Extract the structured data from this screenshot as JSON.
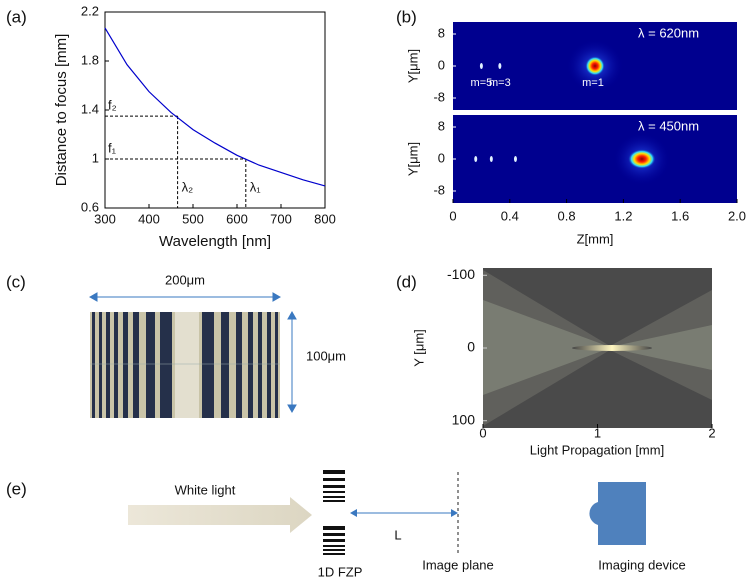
{
  "panel_labels": [
    "(a)",
    "(b)",
    "(c)",
    "(d)",
    "(e)"
  ],
  "chart_data": [
    {
      "type": "line",
      "xlabel": "Wavelength [nm]",
      "ylabel": "Distance to focus [mm]",
      "x": [
        300,
        350,
        400,
        450,
        500,
        550,
        600,
        650,
        700,
        750,
        800
      ],
      "series": [
        {
          "color": "#0000cc",
          "values": [
            2.07,
            1.77,
            1.55,
            1.38,
            1.24,
            1.13,
            1.03,
            0.95,
            0.89,
            0.83,
            0.78
          ]
        }
      ],
      "xlim": [
        300,
        800
      ],
      "ylim": [
        0.6,
        2.2
      ],
      "xticks": [
        300,
        400,
        500,
        600,
        700,
        800
      ],
      "yticks": [
        0.6,
        1,
        1.4,
        1.8,
        2.2
      ],
      "guides": [
        {
          "x": 465,
          "y": 1.35,
          "xlabel": "λ₂",
          "ylabel": "f₂"
        },
        {
          "x": 620,
          "y": 1,
          "xlabel": "λ₁",
          "ylabel": "f₁"
        }
      ]
    },
    {
      "type": "heatmap",
      "xlabel": "Z[mm]",
      "xlim": [
        0,
        2
      ],
      "ylim": [
        -11,
        11
      ],
      "xticks": [
        0,
        0.4,
        0.8,
        1.2,
        1.6,
        {
          "value": 2,
          "label": "2.0"
        }
      ],
      "yticks": [
        8,
        0,
        -8
      ],
      "subplots": [
        {
          "ylabel": "Y[μm]",
          "label": "λ = 620nm",
          "spots": [
            1,
            0.33,
            0.2
          ],
          "spot_labels": [
            "m=1",
            "m=3",
            "m=5"
          ]
        },
        {
          "ylabel": "Y[μm]",
          "label": "λ = 450nm",
          "spots": [
            1.33,
            0.44,
            0.27,
            0.16
          ]
        }
      ]
    },
    {
      "type": "image",
      "xlabel": "Light Propagation [mm]",
      "ylabel": "Y [μm]",
      "xlim": [
        0,
        2
      ],
      "ylim": [
        -110,
        110
      ],
      "xticks": [
        0,
        1,
        2
      ],
      "yticks": [
        -100,
        0,
        100
      ],
      "y_inverted": true
    }
  ],
  "scale_bars": {
    "width": "200μm",
    "height": "100μm"
  },
  "diagram": {
    "light": "White light",
    "lens": "1D FZP",
    "distance": "L",
    "plane": "Image plane",
    "device": "Imaging device"
  }
}
